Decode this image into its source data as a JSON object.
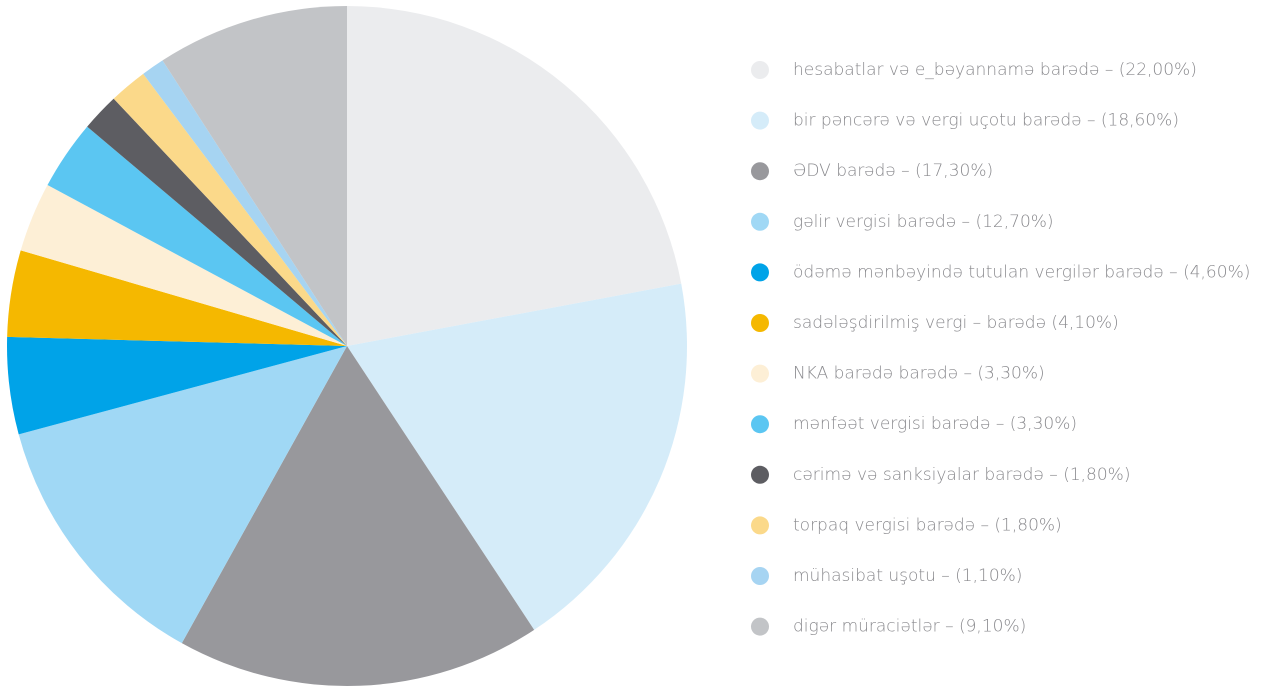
{
  "chart_data": {
    "type": "pie",
    "categories": [
      "hesabatlar və e_bəyannamə barədə – (22,00%)",
      "bir pəncərə və vergi uçotu barədə – (18,60%)",
      "ƏDV barədə – (17,30%)",
      "gəlir vergisi barədə – (12,70%)",
      "ödəmə mənbəyində tutulan vergilər barədə – (4,60%)",
      "sadələşdirilmiş vergi – barədə (4,10%)",
      "NKA barədə barədə – (3,30%)",
      "mənfəət vergisi barədə – (3,30%)",
      "cərimə və sanksiyalar barədə – (1,80%)",
      "torpaq vergisi barədə – (1,80%)",
      "mühasibat uşotu – (1,10%)",
      "digər müraciətlər – (9,10%)"
    ],
    "values": [
      22.0,
      18.6,
      17.3,
      12.7,
      4.6,
      4.1,
      3.3,
      3.3,
      1.8,
      1.8,
      1.1,
      9.1
    ],
    "colors": [
      "#ebecee",
      "#d5ecf9",
      "#98989c",
      "#a0d8f5",
      "#00a3e8",
      "#f5b800",
      "#fdefd6",
      "#5bc6f2",
      "#5d5d62",
      "#fbd98a",
      "#a6d4f2",
      "#c2c4c7"
    ],
    "legend": "right"
  }
}
